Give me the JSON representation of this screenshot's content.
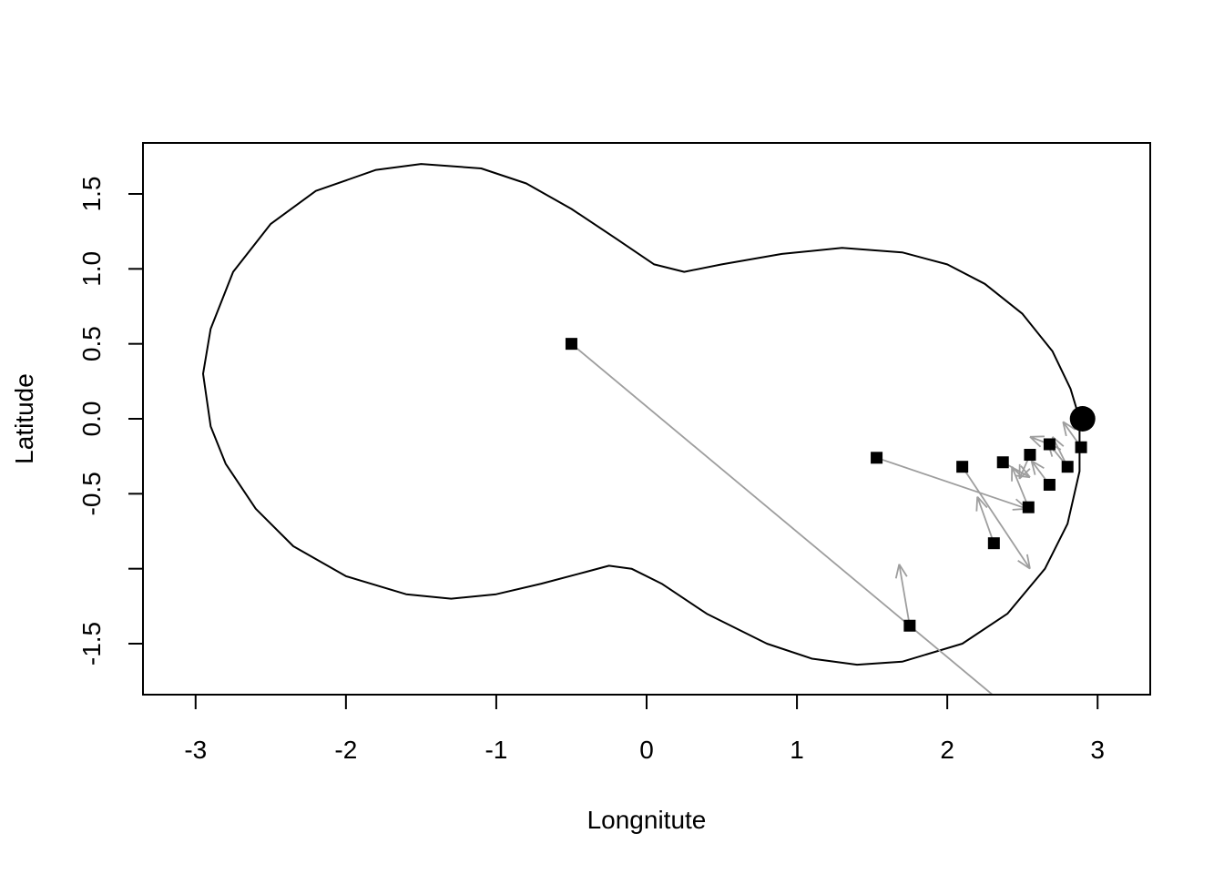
{
  "chart_data": {
    "type": "scatter",
    "title": "",
    "xlabel": "Longnitute",
    "ylabel": "Latitude",
    "xlim": [
      -3.35,
      3.35
    ],
    "ylim": [
      -1.84,
      1.84
    ],
    "x_ticks": [
      {
        "value": -3,
        "label": "-3"
      },
      {
        "value": -2,
        "label": "-2"
      },
      {
        "value": -1,
        "label": "-1"
      },
      {
        "value": 0,
        "label": "0"
      },
      {
        "value": 1,
        "label": "1"
      },
      {
        "value": 2,
        "label": "2"
      },
      {
        "value": 3,
        "label": "3"
      }
    ],
    "y_ticks": [
      {
        "value": -1.5,
        "label": "-1.5"
      },
      {
        "value": -1.0,
        "label": ""
      },
      {
        "value": -0.5,
        "label": "-0.5"
      },
      {
        "value": 0.0,
        "label": "0.0"
      },
      {
        "value": 0.5,
        "label": "0.5"
      },
      {
        "value": 1.0,
        "label": "1.0"
      },
      {
        "value": 1.5,
        "label": "1.5"
      }
    ],
    "grid": false,
    "boundary": [
      [
        2.88,
        0.0
      ],
      [
        2.82,
        0.2
      ],
      [
        2.7,
        0.45
      ],
      [
        2.5,
        0.7
      ],
      [
        2.25,
        0.9
      ],
      [
        2.0,
        1.03
      ],
      [
        1.7,
        1.11
      ],
      [
        1.3,
        1.14
      ],
      [
        0.9,
        1.1
      ],
      [
        0.5,
        1.03
      ],
      [
        0.25,
        0.98
      ],
      [
        0.05,
        1.03
      ],
      [
        -0.2,
        1.2
      ],
      [
        -0.5,
        1.4
      ],
      [
        -0.8,
        1.57
      ],
      [
        -1.1,
        1.67
      ],
      [
        -1.5,
        1.7
      ],
      [
        -1.8,
        1.66
      ],
      [
        -2.2,
        1.52
      ],
      [
        -2.5,
        1.3
      ],
      [
        -2.75,
        0.98
      ],
      [
        -2.9,
        0.6
      ],
      [
        -2.95,
        0.3
      ],
      [
        -2.9,
        -0.05
      ],
      [
        -2.8,
        -0.3
      ],
      [
        -2.6,
        -0.6
      ],
      [
        -2.35,
        -0.85
      ],
      [
        -2.0,
        -1.05
      ],
      [
        -1.6,
        -1.17
      ],
      [
        -1.3,
        -1.2
      ],
      [
        -1.0,
        -1.17
      ],
      [
        -0.7,
        -1.1
      ],
      [
        -0.4,
        -1.02
      ],
      [
        -0.25,
        -0.98
      ],
      [
        -0.1,
        -1.0
      ],
      [
        0.1,
        -1.1
      ],
      [
        0.4,
        -1.3
      ],
      [
        0.8,
        -1.5
      ],
      [
        1.1,
        -1.6
      ],
      [
        1.4,
        -1.64
      ],
      [
        1.7,
        -1.62
      ],
      [
        2.1,
        -1.5
      ],
      [
        2.4,
        -1.3
      ],
      [
        2.65,
        -1.0
      ],
      [
        2.8,
        -0.7
      ],
      [
        2.88,
        -0.35
      ],
      [
        2.88,
        0.0
      ]
    ],
    "target_point": {
      "x": 2.9,
      "y": 0.0
    },
    "points": [
      {
        "x": -0.5,
        "y": 0.5
      },
      {
        "x": 1.53,
        "y": -0.26
      },
      {
        "x": 2.1,
        "y": -0.32
      },
      {
        "x": 2.37,
        "y": -0.29
      },
      {
        "x": 2.55,
        "y": -0.24
      },
      {
        "x": 2.68,
        "y": -0.17
      },
      {
        "x": 2.89,
        "y": -0.19
      },
      {
        "x": 2.8,
        "y": -0.32
      },
      {
        "x": 2.68,
        "y": -0.44
      },
      {
        "x": 2.54,
        "y": -0.59
      },
      {
        "x": 2.31,
        "y": -0.83
      },
      {
        "x": 1.75,
        "y": -1.38
      }
    ],
    "arrows": [
      {
        "x0": -0.5,
        "y0": 0.5,
        "x1": 2.3,
        "y1": -1.84,
        "head": false
      },
      {
        "x0": 1.53,
        "y0": -0.26,
        "x1": 2.53,
        "y1": -0.6,
        "head": true
      },
      {
        "x0": 2.1,
        "y0": -0.32,
        "x1": 2.55,
        "y1": -1.0,
        "head": true
      },
      {
        "x0": 2.31,
        "y0": -0.83,
        "x1": 2.2,
        "y1": -0.52,
        "head": true
      },
      {
        "x0": 1.75,
        "y0": -1.38,
        "x1": 1.68,
        "y1": -0.97,
        "head": true
      },
      {
        "x0": 2.54,
        "y0": -0.59,
        "x1": 2.43,
        "y1": -0.32,
        "head": true
      },
      {
        "x0": 2.37,
        "y0": -0.29,
        "x1": 2.55,
        "y1": -0.39,
        "head": true
      },
      {
        "x0": 2.55,
        "y0": -0.24,
        "x1": 2.48,
        "y1": -0.4,
        "head": true
      },
      {
        "x0": 2.68,
        "y0": -0.44,
        "x1": 2.56,
        "y1": -0.28,
        "head": true
      },
      {
        "x0": 2.8,
        "y0": -0.32,
        "x1": 2.67,
        "y1": -0.16,
        "head": true
      },
      {
        "x0": 2.68,
        "y0": -0.17,
        "x1": 2.55,
        "y1": -0.12,
        "head": true
      },
      {
        "x0": 2.89,
        "y0": -0.19,
        "x1": 2.77,
        "y1": -0.02,
        "head": true
      },
      {
        "x0": 2.8,
        "y0": -0.32,
        "x1": 2.7,
        "y1": -0.12,
        "head": true
      }
    ],
    "colors": {
      "boundary": "#000000",
      "points": "#000000",
      "arrows": "#9e9e9e",
      "frame": "#000000"
    }
  }
}
